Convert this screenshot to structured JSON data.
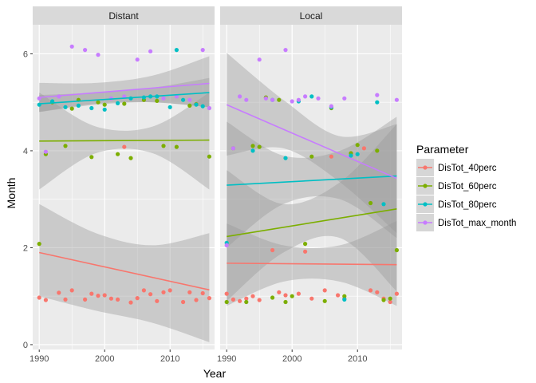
{
  "chart_data": {
    "type": "scatter",
    "xlabel": "Year",
    "ylabel": "Month",
    "xlim": [
      1989,
      2016.8
    ],
    "ylim": [
      -0.1,
      6.6
    ],
    "x_ticks": [
      1990,
      2000,
      2010
    ],
    "y_ticks": [
      0,
      2,
      4,
      6
    ],
    "legend": {
      "title": "Parameter",
      "placement": "right",
      "entries": [
        "DisTot_40perc",
        "DisTot_60perc",
        "DisTot_80perc",
        "DisTot_max_month"
      ]
    },
    "colors": {
      "DisTot_40perc": "#F8766D",
      "DisTot_60perc": "#7CAE00",
      "DisTot_80perc": "#00BFC4",
      "DisTot_max_month": "#C77CFF",
      "panel_bg": "#EBEBEB",
      "strip_bg": "#D9D9D9",
      "ribbon": "#999999"
    },
    "panels": [
      {
        "name": "Distant",
        "series": [
          {
            "name": "DisTot_40perc",
            "points": [
              [
                1990,
                0.97
              ],
              [
                1991,
                0.92
              ],
              [
                1993,
                1.07
              ],
              [
                1994,
                0.93
              ],
              [
                1995,
                1.12
              ],
              [
                1997,
                0.93
              ],
              [
                1998,
                1.05
              ],
              [
                1999,
                1.01
              ],
              [
                2000,
                1.02
              ],
              [
                2001,
                0.95
              ],
              [
                2002,
                0.93
              ],
              [
                2003,
                4.08
              ],
              [
                2004,
                0.87
              ],
              [
                2005,
                0.96
              ],
              [
                2006,
                1.12
              ],
              [
                2007,
                1.04
              ],
              [
                2008,
                0.9
              ],
              [
                2009,
                1.08
              ],
              [
                2010,
                1.12
              ],
              [
                2012,
                0.88
              ],
              [
                2013,
                1.08
              ],
              [
                2014,
                0.92
              ],
              [
                2015,
                1.06
              ],
              [
                2016,
                0.96
              ]
            ],
            "trend": {
              "x": [
                1990,
                2016
              ],
              "y": [
                1.9,
                1.13
              ]
            },
            "band": {
              "lower": [
                1.0,
                0.7,
                0.45,
                0.05
              ],
              "upper": [
                2.9,
                2.3,
                2.05,
                2.3
              ]
            }
          },
          {
            "name": "DisTot_60perc",
            "points": [
              [
                1990,
                2.08
              ],
              [
                1991,
                3.93
              ],
              [
                1992,
                5.0
              ],
              [
                1994,
                4.1
              ],
              [
                1995,
                4.87
              ],
              [
                1996,
                5.05
              ],
              [
                1998,
                3.87
              ],
              [
                1999,
                5.0
              ],
              [
                2000,
                4.95
              ],
              [
                2002,
                3.93
              ],
              [
                2003,
                4.97
              ],
              [
                2004,
                3.85
              ],
              [
                2006,
                5.05
              ],
              [
                2008,
                5.03
              ],
              [
                2009,
                4.1
              ],
              [
                2011,
                4.08
              ],
              [
                2013,
                4.93
              ],
              [
                2014,
                4.96
              ],
              [
                2016,
                3.88
              ]
            ],
            "trend": {
              "x": [
                1990,
                2016
              ],
              "y": [
                4.2,
                4.22
              ]
            },
            "band": {
              "lower": [
                3.2,
                3.95,
                3.95,
                3.2
              ],
              "upper": [
                5.2,
                4.5,
                4.5,
                5.2
              ]
            }
          },
          {
            "name": "DisTot_80perc",
            "points": [
              [
                1990,
                4.95
              ],
              [
                1992,
                5.02
              ],
              [
                1994,
                4.9
              ],
              [
                1996,
                4.93
              ],
              [
                1998,
                4.88
              ],
              [
                2000,
                4.85
              ],
              [
                2002,
                4.98
              ],
              [
                2004,
                5.08
              ],
              [
                2006,
                5.1
              ],
              [
                2007,
                5.12
              ],
              [
                2008,
                5.12
              ],
              [
                2010,
                4.9
              ],
              [
                2011,
                6.08
              ],
              [
                2012,
                5.05
              ],
              [
                2014,
                4.95
              ],
              [
                2015,
                4.92
              ]
            ],
            "trend": {
              "x": [
                1990,
                2016
              ],
              "y": [
                4.97,
                5.2
              ]
            },
            "band": {
              "lower": [
                4.8,
                4.95,
                5.0,
                4.9
              ],
              "upper": [
                5.15,
                5.2,
                5.3,
                5.5
              ]
            }
          },
          {
            "name": "DisTot_max_month",
            "points": [
              [
                1990,
                5.08
              ],
              [
                1991,
                3.98
              ],
              [
                1993,
                5.12
              ],
              [
                1995,
                6.15
              ],
              [
                1997,
                6.08
              ],
              [
                1999,
                5.98
              ],
              [
                2001,
                5.08
              ],
              [
                2003,
                5.12
              ],
              [
                2005,
                5.88
              ],
              [
                2007,
                6.05
              ],
              [
                2009,
                5.08
              ],
              [
                2011,
                5.12
              ],
              [
                2013,
                5.05
              ],
              [
                2015,
                6.08
              ],
              [
                2016,
                4.88
              ]
            ],
            "trend": {
              "x": [
                1990,
                2016
              ],
              "y": [
                5.1,
                5.39
              ]
            },
            "band": {
              "lower": [
                4.8,
                4.97,
                5.0,
                4.9
              ],
              "upper": [
                5.4,
                5.4,
                5.55,
                5.95
              ]
            }
          }
        ]
      },
      {
        "name": "Local",
        "series": [
          {
            "name": "DisTot_40perc",
            "points": [
              [
                1990,
                1.05
              ],
              [
                1991,
                0.93
              ],
              [
                1992,
                0.9
              ],
              [
                1993,
                0.95
              ],
              [
                1994,
                1.0
              ],
              [
                1995,
                0.92
              ],
              [
                1997,
                1.95
              ],
              [
                1998,
                1.08
              ],
              [
                1999,
                1.02
              ],
              [
                2001,
                1.05
              ],
              [
                2002,
                1.92
              ],
              [
                2003,
                0.95
              ],
              [
                2005,
                1.12
              ],
              [
                2006,
                3.88
              ],
              [
                2007,
                1.02
              ],
              [
                2008,
                0.95
              ],
              [
                2009,
                3.92
              ],
              [
                2011,
                4.05
              ],
              [
                2012,
                1.12
              ],
              [
                2013,
                1.08
              ],
              [
                2014,
                0.95
              ],
              [
                2015,
                0.88
              ],
              [
                2016,
                1.05
              ]
            ],
            "trend": {
              "x": [
                1990,
                2016
              ],
              "y": [
                1.68,
                1.65
              ]
            },
            "band": {
              "lower": [
                0.8,
                1.3,
                1.3,
                0.8
              ],
              "upper": [
                2.5,
                2.05,
                2.05,
                2.55
              ]
            }
          },
          {
            "name": "DisTot_60perc",
            "points": [
              [
                1990,
                0.88
              ],
              [
                1991,
                4.05
              ],
              [
                1993,
                0.88
              ],
              [
                1994,
                4.1
              ],
              [
                1995,
                4.08
              ],
              [
                1996,
                5.1
              ],
              [
                1997,
                0.97
              ],
              [
                1998,
                5.05
              ],
              [
                1999,
                0.88
              ],
              [
                2000,
                1.0
              ],
              [
                2002,
                2.08
              ],
              [
                2003,
                3.88
              ],
              [
                2005,
                0.9
              ],
              [
                2006,
                4.88
              ],
              [
                2008,
                1.0
              ],
              [
                2009,
                3.95
              ],
              [
                2010,
                4.12
              ],
              [
                2012,
                2.92
              ],
              [
                2013,
                4.0
              ],
              [
                2014,
                0.92
              ],
              [
                2015,
                0.95
              ],
              [
                2016,
                1.95
              ]
            ],
            "trend": {
              "x": [
                1990,
                2016
              ],
              "y": [
                2.23,
                2.8
              ]
            },
            "band": {
              "lower": [
                0.9,
                1.9,
                2.2,
                1.1
              ],
              "upper": [
                3.6,
                2.9,
                3.35,
                4.55
              ]
            }
          },
          {
            "name": "DisTot_80perc",
            "points": [
              [
                1990,
                2.1
              ],
              [
                1994,
                4.0
              ],
              [
                1997,
                5.05
              ],
              [
                1999,
                3.85
              ],
              [
                2001,
                5.02
              ],
              [
                2003,
                5.12
              ],
              [
                2006,
                4.9
              ],
              [
                2008,
                0.93
              ],
              [
                2009,
                3.9
              ],
              [
                2010,
                3.93
              ],
              [
                2013,
                5.0
              ],
              [
                2014,
                2.9
              ]
            ],
            "trend": {
              "x": [
                1990,
                2016
              ],
              "y": [
                3.29,
                3.48
              ]
            },
            "band": {
              "lower": [
                2.0,
                2.9,
                3.0,
                2.2
              ],
              "upper": [
                4.6,
                3.9,
                4.0,
                4.7
              ]
            }
          },
          {
            "name": "DisTot_max_month",
            "points": [
              [
                1990,
                2.05
              ],
              [
                1991,
                4.05
              ],
              [
                1992,
                5.12
              ],
              [
                1993,
                5.05
              ],
              [
                1995,
                5.88
              ],
              [
                1996,
                5.08
              ],
              [
                1997,
                5.05
              ],
              [
                1999,
                6.08
              ],
              [
                2000,
                5.02
              ],
              [
                2001,
                5.05
              ],
              [
                2002,
                5.12
              ],
              [
                2004,
                5.08
              ],
              [
                2006,
                4.92
              ],
              [
                2008,
                5.08
              ],
              [
                2013,
                5.15
              ],
              [
                2016,
                5.05
              ]
            ],
            "trend": {
              "x": [
                1990,
                2016
              ],
              "y": [
                4.95,
                3.43
              ]
            },
            "band": {
              "lower": [
                3.9,
                4.05,
                3.35,
                2.3
              ],
              "upper": [
                6.02,
                5.05,
                4.3,
                4.55
              ]
            }
          }
        ]
      }
    ]
  }
}
